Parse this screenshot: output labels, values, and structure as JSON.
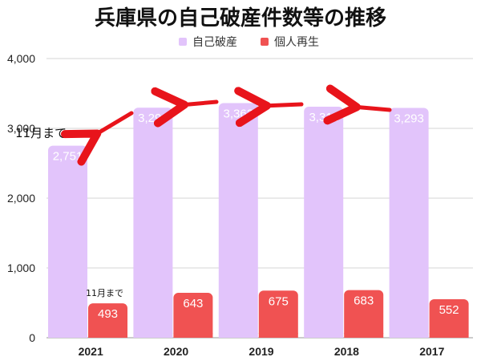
{
  "chart_data": {
    "type": "bar",
    "title": "兵庫県の自己破産件数等の推移",
    "categories": [
      "2021",
      "2020",
      "2019",
      "2018",
      "2017"
    ],
    "series": [
      {
        "name": "自己破産",
        "values": [
          2751,
          3296,
          3362,
          3311,
          3293
        ],
        "labels": [
          "2,751",
          "3,296",
          "3,362",
          "3,311",
          "3,293"
        ],
        "color": "#e2c4fb"
      },
      {
        "name": "個人再生",
        "values": [
          493,
          643,
          675,
          683,
          552
        ],
        "labels": [
          "493",
          "643",
          "675",
          "683",
          "552"
        ],
        "color": "#f05252"
      }
    ],
    "ylim": [
      0,
      4000
    ],
    "yticks": [
      0,
      1000,
      2000,
      3000,
      4000
    ],
    "ytick_labels": [
      "0",
      "1,000",
      "2,000",
      "3,000",
      "4,000"
    ],
    "grid": true,
    "legend_position": "top",
    "annotations": {
      "bankruptcy_2021": "11月まで",
      "rehab_2021": "11月まで"
    },
    "arrow_color": "#e8141b"
  }
}
